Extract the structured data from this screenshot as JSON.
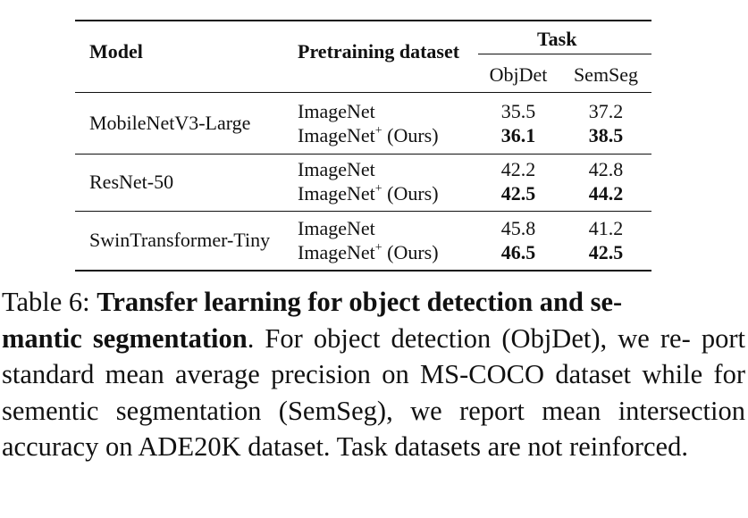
{
  "table": {
    "headers": {
      "model": "Model",
      "dataset": "Pretraining dataset",
      "task": "Task",
      "objdet": "ObjDet",
      "semseg": "SemSeg"
    },
    "groups": [
      {
        "model": "MobileNetV3-Large",
        "rows": [
          {
            "dataset": "ImageNet",
            "sup": "",
            "suffix": "",
            "objdet": "35.5",
            "semseg": "37.2"
          },
          {
            "dataset": "ImageNet",
            "sup": "+",
            "suffix": " (Ours)",
            "objdet": "36.1",
            "semseg": "38.5"
          }
        ]
      },
      {
        "model": "ResNet-50",
        "rows": [
          {
            "dataset": "ImageNet",
            "sup": "",
            "suffix": "",
            "objdet": "42.2",
            "semseg": "42.8"
          },
          {
            "dataset": "ImageNet",
            "sup": "+",
            "suffix": " (Ours)",
            "objdet": "42.5",
            "semseg": "44.2"
          }
        ]
      },
      {
        "model": "SwinTransformer-Tiny",
        "rows": [
          {
            "dataset": "ImageNet",
            "sup": "",
            "suffix": "",
            "objdet": "45.8",
            "semseg": "41.2"
          },
          {
            "dataset": "ImageNet",
            "sup": "+",
            "suffix": " (Ours)",
            "objdet": "46.5",
            "semseg": "42.5"
          }
        ]
      }
    ]
  },
  "caption": {
    "label": "Table 6:",
    "title_part1": "Transfer learning for object detection and se-",
    "title_part2": "mantic segmentation",
    "body_line1": ". For object detection (ObjDet), we re-",
    "body_rest": "port standard mean average precision on MS-COCO dataset while for sementic segmentation (SemSeg), we report mean intersection accuracy on ADE20K dataset. Task datasets are not reinforced."
  }
}
